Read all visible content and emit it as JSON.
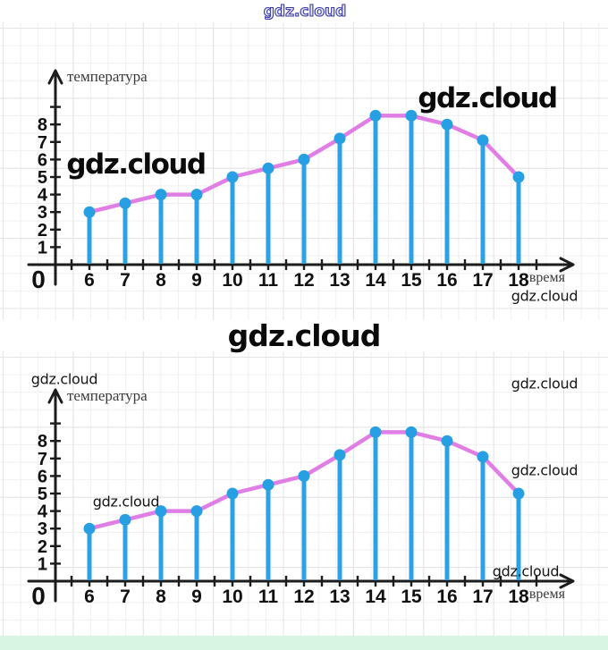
{
  "watermarks": {
    "top_banner": "gdz.cloud",
    "section_title": "gdz.cloud",
    "chart1_left_bold": "gdz.cloud",
    "chart1_right_bold": "gdz.cloud",
    "chart1_below_axis": "gdz.cloud",
    "chart2_top_left": "gdz.cloud",
    "chart2_top_right": "gdz.cloud",
    "chart2_mid_left": "gdz.cloud",
    "chart2_mid_right": "gdz.cloud",
    "chart2_above_axis": "gdz.cloud"
  },
  "chart_data": [
    {
      "type": "line",
      "style": "stem-line",
      "title": "",
      "xlabel": "время",
      "ylabel": "температура",
      "origin_label": "0",
      "x": [
        6,
        7,
        8,
        9,
        10,
        11,
        12,
        13,
        14,
        15,
        16,
        17,
        18
      ],
      "y": [
        3,
        3.5,
        4,
        4,
        5,
        5.5,
        6,
        7.2,
        8.5,
        8.5,
        8,
        7.1,
        5
      ],
      "yticks": [
        1,
        2,
        3,
        4,
        5,
        6,
        7,
        8
      ],
      "xlim": [
        0,
        19
      ],
      "ylim": [
        0,
        9
      ],
      "grid": true,
      "legend": "none",
      "marker": "circle"
    },
    {
      "type": "line",
      "style": "stem-line",
      "title": "",
      "xlabel": "время",
      "ylabel": "температура",
      "origin_label": "0",
      "x": [
        6,
        7,
        8,
        9,
        10,
        11,
        12,
        13,
        14,
        15,
        16,
        17,
        18
      ],
      "y": [
        3,
        3.5,
        4,
        4,
        5,
        5.5,
        6,
        7.2,
        8.5,
        8.5,
        8,
        7.1,
        5
      ],
      "yticks": [
        1,
        2,
        3,
        4,
        5,
        6,
        7,
        8
      ],
      "xlim": [
        0,
        19
      ],
      "ylim": [
        0,
        9
      ],
      "grid": true,
      "legend": "none",
      "marker": "circle"
    }
  ],
  "colors": {
    "stem": "#2ba2e3",
    "marker": "#26a0e2",
    "line": "#e07ee6",
    "axis": "#1c1c1c",
    "tick_label": "#111111",
    "axis_word_label": "#3a3a3a",
    "grid": "#ececec",
    "mint_band": "#d6f3e2",
    "watermark_black": "#0a0a0a",
    "watermark_outline": "#3a3aa6"
  }
}
